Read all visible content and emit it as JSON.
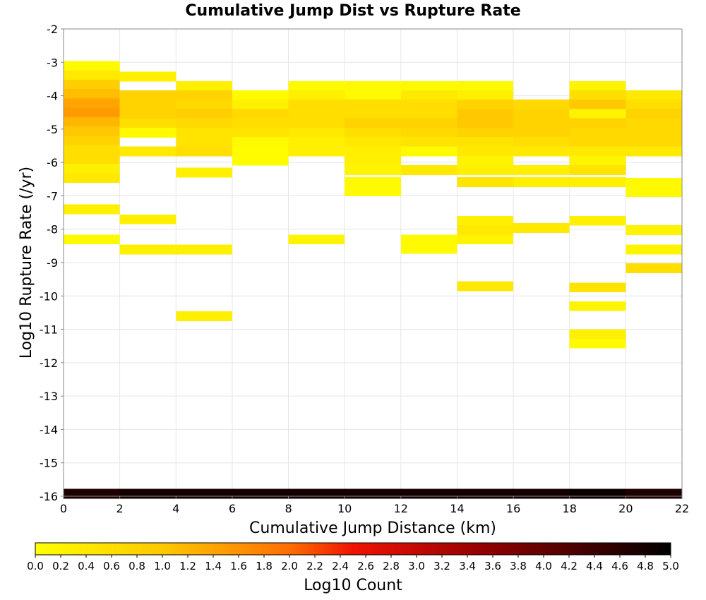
{
  "chart_data": {
    "type": "heatmap",
    "title": "Cumulative Jump Dist vs Rupture Rate",
    "xlabel": "Cumulative Jump Distance (km)",
    "ylabel": "Log10 Rupture Rate (/yr)",
    "xlim": [
      0,
      22
    ],
    "ylim": [
      -16,
      -2
    ],
    "x_ticks": [
      "0",
      "2",
      "4",
      "6",
      "8",
      "10",
      "12",
      "14",
      "16",
      "18",
      "20",
      "22"
    ],
    "y_ticks": [
      "-2",
      "-3",
      "-4",
      "-5",
      "-6",
      "-7",
      "-8",
      "-9",
      "-10",
      "-11",
      "-12",
      "-13",
      "-14",
      "-15",
      "-16"
    ],
    "grid": true,
    "x_bin_width": 2,
    "y_bin_height": 0.28,
    "colorbar": {
      "label": "Log10 Count",
      "min": 0.0,
      "max": 5.0,
      "ticks": [
        "0.0",
        "0.2",
        "0.4",
        "0.6",
        "0.8",
        "1.0",
        "1.2",
        "1.4",
        "1.6",
        "1.8",
        "2.0",
        "2.2",
        "2.4",
        "2.6",
        "2.8",
        "3.0",
        "3.2",
        "3.4",
        "3.6",
        "3.8",
        "4.0",
        "4.2",
        "4.4",
        "4.6",
        "4.8",
        "5.0"
      ]
    },
    "cells": [
      {
        "x0": 0,
        "y": -3.1,
        "v": 0.1
      },
      {
        "x0": 0,
        "y": -3.38,
        "v": 0.4
      },
      {
        "x0": 0,
        "y": -3.66,
        "v": 0.9
      },
      {
        "x0": 0,
        "y": -3.94,
        "v": 1.1
      },
      {
        "x0": 0,
        "y": -4.22,
        "v": 1.4
      },
      {
        "x0": 0,
        "y": -4.5,
        "v": 1.5
      },
      {
        "x0": 0,
        "y": -4.78,
        "v": 1.2
      },
      {
        "x0": 0,
        "y": -5.06,
        "v": 1.0
      },
      {
        "x0": 0,
        "y": -5.34,
        "v": 0.8
      },
      {
        "x0": 0,
        "y": -5.62,
        "v": 0.6
      },
      {
        "x0": 0,
        "y": -5.9,
        "v": 0.6
      },
      {
        "x0": 0,
        "y": -6.18,
        "v": 0.3
      },
      {
        "x0": 0,
        "y": -6.46,
        "v": 0.4
      },
      {
        "x0": 0,
        "y": -7.4,
        "v": 0.3
      },
      {
        "x0": 0,
        "y": -8.3,
        "v": 0.1
      },
      {
        "x0": 2,
        "y": -3.42,
        "v": 0.3
      },
      {
        "x0": 2,
        "y": -3.98,
        "v": 0.8
      },
      {
        "x0": 2,
        "y": -4.26,
        "v": 0.8
      },
      {
        "x0": 2,
        "y": -4.54,
        "v": 0.8
      },
      {
        "x0": 2,
        "y": -4.82,
        "v": 0.6
      },
      {
        "x0": 2,
        "y": -5.1,
        "v": 0.1
      },
      {
        "x0": 2,
        "y": -5.66,
        "v": 0.4
      },
      {
        "x0": 2,
        "y": -7.7,
        "v": 0.3
      },
      {
        "x0": 2,
        "y": -8.6,
        "v": 0.3
      },
      {
        "x0": 4,
        "y": -3.7,
        "v": 0.3
      },
      {
        "x0": 4,
        "y": -3.98,
        "v": 0.8
      },
      {
        "x0": 4,
        "y": -4.26,
        "v": 0.7
      },
      {
        "x0": 4,
        "y": -4.54,
        "v": 0.9
      },
      {
        "x0": 4,
        "y": -4.82,
        "v": 0.7
      },
      {
        "x0": 4,
        "y": -5.1,
        "v": 0.5
      },
      {
        "x0": 4,
        "y": -5.38,
        "v": 0.5
      },
      {
        "x0": 4,
        "y": -5.66,
        "v": 0.6
      },
      {
        "x0": 4,
        "y": -6.3,
        "v": 0.3
      },
      {
        "x0": 4,
        "y": -8.6,
        "v": 0.3
      },
      {
        "x0": 4,
        "y": -10.6,
        "v": 0.3
      },
      {
        "x0": 6,
        "y": -3.98,
        "v": 0.1
      },
      {
        "x0": 6,
        "y": -4.26,
        "v": 0.3
      },
      {
        "x0": 6,
        "y": -4.54,
        "v": 0.7
      },
      {
        "x0": 6,
        "y": -4.82,
        "v": 0.6
      },
      {
        "x0": 6,
        "y": -5.1,
        "v": 0.5
      },
      {
        "x0": 6,
        "y": -5.38,
        "v": 0.1
      },
      {
        "x0": 6,
        "y": -5.66,
        "v": 0.05
      },
      {
        "x0": 6,
        "y": -5.94,
        "v": 0.05
      },
      {
        "x0": 8,
        "y": -3.7,
        "v": 0.1
      },
      {
        "x0": 8,
        "y": -3.98,
        "v": 0.3
      },
      {
        "x0": 8,
        "y": -4.26,
        "v": 0.6
      },
      {
        "x0": 8,
        "y": -4.54,
        "v": 0.6
      },
      {
        "x0": 8,
        "y": -4.82,
        "v": 0.6
      },
      {
        "x0": 8,
        "y": -5.1,
        "v": 0.4
      },
      {
        "x0": 8,
        "y": -5.38,
        "v": 0.3
      },
      {
        "x0": 8,
        "y": -5.66,
        "v": 0.3
      },
      {
        "x0": 8,
        "y": -8.3,
        "v": 0.2
      },
      {
        "x0": 10,
        "y": -3.7,
        "v": 0.1
      },
      {
        "x0": 10,
        "y": -3.98,
        "v": 0.1
      },
      {
        "x0": 10,
        "y": -4.26,
        "v": 0.6
      },
      {
        "x0": 10,
        "y": -4.54,
        "v": 0.6
      },
      {
        "x0": 10,
        "y": -4.82,
        "v": 0.8
      },
      {
        "x0": 10,
        "y": -5.1,
        "v": 0.6
      },
      {
        "x0": 10,
        "y": -5.38,
        "v": 0.4
      },
      {
        "x0": 10,
        "y": -5.66,
        "v": 0.3
      },
      {
        "x0": 10,
        "y": -5.94,
        "v": 0.3
      },
      {
        "x0": 10,
        "y": -6.22,
        "v": 0.2
      },
      {
        "x0": 10,
        "y": -6.58,
        "v": 0.1
      },
      {
        "x0": 10,
        "y": -6.86,
        "v": 0.1
      },
      {
        "x0": 12,
        "y": -3.7,
        "v": 0.1
      },
      {
        "x0": 12,
        "y": -3.98,
        "v": 0.4
      },
      {
        "x0": 12,
        "y": -4.26,
        "v": 0.6
      },
      {
        "x0": 12,
        "y": -4.54,
        "v": 0.6
      },
      {
        "x0": 12,
        "y": -4.82,
        "v": 0.8
      },
      {
        "x0": 12,
        "y": -5.1,
        "v": 0.7
      },
      {
        "x0": 12,
        "y": -5.38,
        "v": 0.5
      },
      {
        "x0": 12,
        "y": -5.66,
        "v": 0.1
      },
      {
        "x0": 12,
        "y": -6.22,
        "v": 0.4
      },
      {
        "x0": 12,
        "y": -8.3,
        "v": 0.1
      },
      {
        "x0": 12,
        "y": -8.58,
        "v": 0.1
      },
      {
        "x0": 14,
        "y": -3.7,
        "v": 0.1
      },
      {
        "x0": 14,
        "y": -3.98,
        "v": 0.3
      },
      {
        "x0": 14,
        "y": -4.26,
        "v": 0.8
      },
      {
        "x0": 14,
        "y": -4.54,
        "v": 1.0
      },
      {
        "x0": 14,
        "y": -4.82,
        "v": 1.0
      },
      {
        "x0": 14,
        "y": -5.1,
        "v": 0.8
      },
      {
        "x0": 14,
        "y": -5.38,
        "v": 0.5
      },
      {
        "x0": 14,
        "y": -5.66,
        "v": 0.4
      },
      {
        "x0": 14,
        "y": -5.94,
        "v": 0.2
      },
      {
        "x0": 14,
        "y": -6.22,
        "v": 0.3
      },
      {
        "x0": 14,
        "y": -6.58,
        "v": 0.5
      },
      {
        "x0": 14,
        "y": -7.74,
        "v": 0.3
      },
      {
        "x0": 14,
        "y": -8.02,
        "v": 0.4
      },
      {
        "x0": 14,
        "y": -8.3,
        "v": 0.2
      },
      {
        "x0": 14,
        "y": -9.7,
        "v": 0.4
      },
      {
        "x0": 16,
        "y": -4.26,
        "v": 0.7
      },
      {
        "x0": 16,
        "y": -4.54,
        "v": 0.8
      },
      {
        "x0": 16,
        "y": -4.82,
        "v": 0.8
      },
      {
        "x0": 16,
        "y": -5.1,
        "v": 0.8
      },
      {
        "x0": 16,
        "y": -5.38,
        "v": 0.6
      },
      {
        "x0": 16,
        "y": -5.66,
        "v": 0.4
      },
      {
        "x0": 16,
        "y": -6.22,
        "v": 0.3
      },
      {
        "x0": 16,
        "y": -6.58,
        "v": 0.3
      },
      {
        "x0": 16,
        "y": -7.96,
        "v": 0.4
      },
      {
        "x0": 18,
        "y": -3.7,
        "v": 0.2
      },
      {
        "x0": 18,
        "y": -3.98,
        "v": 0.6
      },
      {
        "x0": 18,
        "y": -4.26,
        "v": 1.0
      },
      {
        "x0": 18,
        "y": -4.54,
        "v": 0.2
      },
      {
        "x0": 18,
        "y": -4.82,
        "v": 0.8
      },
      {
        "x0": 18,
        "y": -5.1,
        "v": 0.7
      },
      {
        "x0": 18,
        "y": -5.38,
        "v": 0.7
      },
      {
        "x0": 18,
        "y": -5.66,
        "v": 0.4
      },
      {
        "x0": 18,
        "y": -5.94,
        "v": 0.2
      },
      {
        "x0": 18,
        "y": -6.22,
        "v": 0.5
      },
      {
        "x0": 18,
        "y": -6.58,
        "v": 0.3
      },
      {
        "x0": 18,
        "y": -7.74,
        "v": 0.3
      },
      {
        "x0": 18,
        "y": -9.74,
        "v": 0.5
      },
      {
        "x0": 18,
        "y": -10.3,
        "v": 0.2
      },
      {
        "x0": 18,
        "y": -11.14,
        "v": 0.3
      },
      {
        "x0": 18,
        "y": -11.42,
        "v": 0.1
      },
      {
        "x0": 20,
        "y": -3.98,
        "v": 0.4
      },
      {
        "x0": 20,
        "y": -4.26,
        "v": 0.6
      },
      {
        "x0": 20,
        "y": -4.54,
        "v": 0.8
      },
      {
        "x0": 20,
        "y": -4.82,
        "v": 0.7
      },
      {
        "x0": 20,
        "y": -5.1,
        "v": 0.7
      },
      {
        "x0": 20,
        "y": -5.38,
        "v": 0.7
      },
      {
        "x0": 20,
        "y": -5.66,
        "v": 0.4
      },
      {
        "x0": 20,
        "y": -6.6,
        "v": 0.1
      },
      {
        "x0": 20,
        "y": -6.88,
        "v": 0.1
      },
      {
        "x0": 20,
        "y": -8.02,
        "v": 0.2
      },
      {
        "x0": 20,
        "y": -8.6,
        "v": 0.2
      },
      {
        "x0": 20,
        "y": -9.16,
        "v": 0.6
      },
      {
        "x0": 0,
        "y": -15.92,
        "v": 4.7
      },
      {
        "x0": 2,
        "y": -15.92,
        "v": 4.8
      },
      {
        "x0": 4,
        "y": -15.92,
        "v": 4.8
      },
      {
        "x0": 6,
        "y": -15.92,
        "v": 4.8
      },
      {
        "x0": 8,
        "y": -15.92,
        "v": 4.8
      },
      {
        "x0": 10,
        "y": -15.92,
        "v": 4.8
      },
      {
        "x0": 12,
        "y": -15.92,
        "v": 4.8
      },
      {
        "x0": 14,
        "y": -15.92,
        "v": 4.8
      },
      {
        "x0": 16,
        "y": -15.92,
        "v": 4.8
      },
      {
        "x0": 18,
        "y": -15.92,
        "v": 4.9
      },
      {
        "x0": 20,
        "y": -15.92,
        "v": 4.7
      }
    ]
  }
}
